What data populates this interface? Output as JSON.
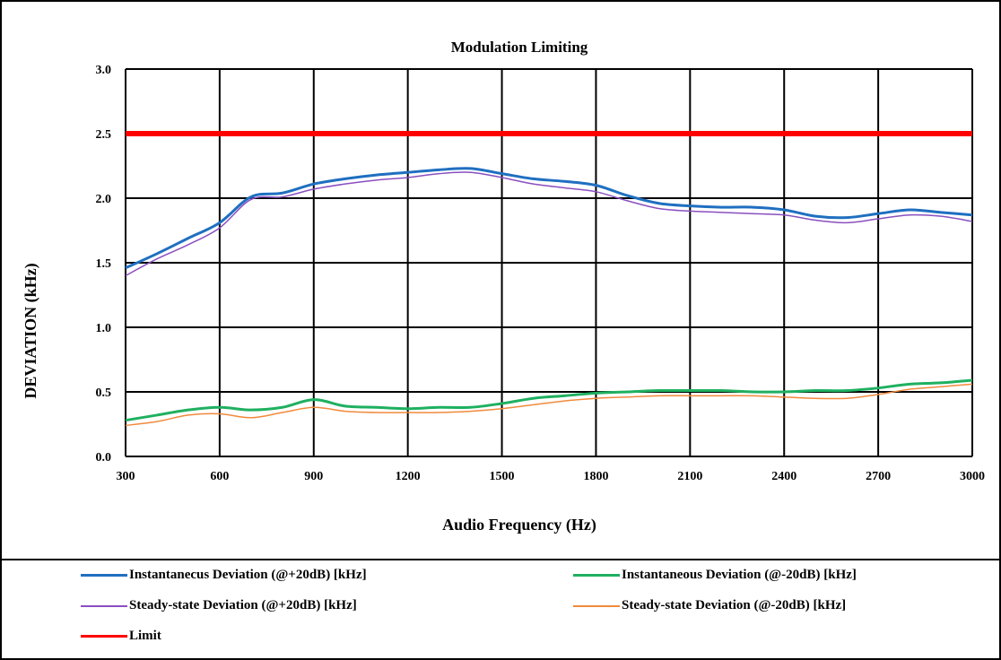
{
  "chart_data": {
    "type": "line",
    "title": "Modulation Limiting",
    "xlabel": "Audio Frequency (Hz)",
    "ylabel": "DEVIATION (kHz)",
    "xlim": [
      300,
      3000
    ],
    "ylim": [
      0,
      3
    ],
    "x_ticks": [
      "300",
      "600",
      "900",
      "1200",
      "1500",
      "1800",
      "2100",
      "2400",
      "2700",
      "3000"
    ],
    "y_ticks": [
      "0.0",
      "0.5",
      "1.0",
      "1.5",
      "2.0",
      "2.5",
      "3.0"
    ],
    "grid": true,
    "legend_position": "bottom",
    "series": [
      {
        "name": "Instantanecus Deviation (@+20dB) [kHz]",
        "color": "#1f6fc0",
        "width": 3,
        "x": [
          300,
          400,
          500,
          600,
          700,
          800,
          900,
          1000,
          1100,
          1200,
          1300,
          1400,
          1500,
          1600,
          1700,
          1800,
          1900,
          2000,
          2100,
          2200,
          2300,
          2400,
          2500,
          2600,
          2700,
          2800,
          2900,
          3000
        ],
        "y": [
          1.46,
          1.57,
          1.69,
          1.81,
          2.01,
          2.04,
          2.11,
          2.15,
          2.18,
          2.2,
          2.22,
          2.23,
          2.19,
          2.15,
          2.13,
          2.1,
          2.02,
          1.96,
          1.94,
          1.93,
          1.93,
          1.91,
          1.86,
          1.85,
          1.88,
          1.91,
          1.89,
          1.87
        ]
      },
      {
        "name": "Instantaneous Deviation (@-20dB) [kHz]",
        "color": "#1fb060",
        "width": 3,
        "x": [
          300,
          400,
          500,
          600,
          700,
          800,
          900,
          1000,
          1100,
          1200,
          1300,
          1400,
          1500,
          1600,
          1700,
          1800,
          1900,
          2000,
          2100,
          2200,
          2300,
          2400,
          2500,
          2600,
          2700,
          2800,
          2900,
          3000
        ],
        "y": [
          0.28,
          0.32,
          0.36,
          0.38,
          0.36,
          0.38,
          0.44,
          0.39,
          0.38,
          0.37,
          0.38,
          0.38,
          0.41,
          0.45,
          0.47,
          0.49,
          0.5,
          0.51,
          0.51,
          0.51,
          0.5,
          0.5,
          0.51,
          0.51,
          0.53,
          0.56,
          0.57,
          0.59
        ]
      },
      {
        "name": "Steady-state Deviation (@+20dB) [kHz]",
        "color": "#8a4fbf",
        "width": 1.5,
        "x": [
          300,
          400,
          500,
          600,
          700,
          800,
          900,
          1000,
          1100,
          1200,
          1300,
          1400,
          1500,
          1600,
          1700,
          1800,
          1900,
          2000,
          2100,
          2200,
          2300,
          2400,
          2500,
          2600,
          2700,
          2800,
          2900,
          3000
        ],
        "y": [
          1.4,
          1.53,
          1.64,
          1.77,
          1.99,
          2.01,
          2.07,
          2.11,
          2.14,
          2.16,
          2.19,
          2.2,
          2.16,
          2.11,
          2.08,
          2.05,
          1.98,
          1.92,
          1.9,
          1.89,
          1.88,
          1.87,
          1.83,
          1.81,
          1.84,
          1.87,
          1.86,
          1.82
        ]
      },
      {
        "name": "Steady-state Deviation (@-20dB) [kHz]",
        "color": "#f08a3c",
        "width": 1.5,
        "x": [
          300,
          400,
          500,
          600,
          700,
          800,
          900,
          1000,
          1100,
          1200,
          1300,
          1400,
          1500,
          1600,
          1700,
          1800,
          1900,
          2000,
          2100,
          2200,
          2300,
          2400,
          2500,
          2600,
          2700,
          2800,
          2900,
          3000
        ],
        "y": [
          0.24,
          0.27,
          0.32,
          0.33,
          0.3,
          0.34,
          0.38,
          0.35,
          0.34,
          0.34,
          0.34,
          0.35,
          0.37,
          0.4,
          0.43,
          0.45,
          0.46,
          0.47,
          0.47,
          0.47,
          0.47,
          0.46,
          0.45,
          0.45,
          0.48,
          0.52,
          0.54,
          0.56
        ]
      },
      {
        "name": "Limit",
        "color": "#ff0000",
        "width": 6,
        "x": [
          300,
          3000
        ],
        "y": [
          2.5,
          2.5
        ]
      }
    ]
  }
}
